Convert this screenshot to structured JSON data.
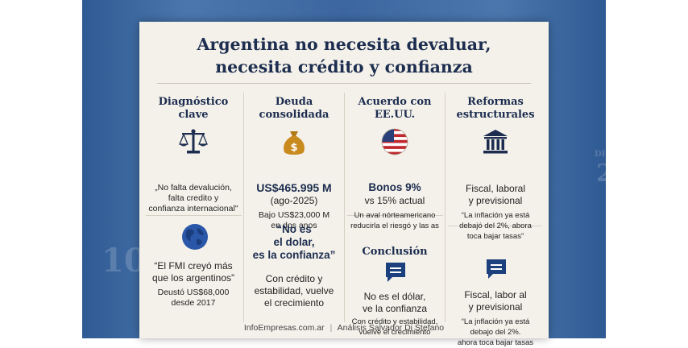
{
  "title": {
    "line1": "Argentina no necesita devaluar,",
    "line2": "necesita crédito y confianza"
  },
  "col1": {
    "header_l1": "Diagnóstico",
    "header_l2": "clave",
    "quote_l1": "„No falta devalución,",
    "quote_l2": "falta credito y",
    "quote_l3": "confianza internacional\"",
    "lower_l1": "“El FMI creyó más",
    "lower_l2": "que los argentinos”",
    "lower_l3": "Deustó US$68,000",
    "lower_l4": "desde 2017"
  },
  "col2": {
    "header_l1": "Deuda",
    "header_l2": "consolidada",
    "amount": "US$465.995 M",
    "date": "(ago-2025)",
    "note_l1": "Bajo US$23,000 M",
    "note_l2": "en dos anos",
    "slogan_l1": "“No es",
    "slogan_l2": "el dolar,",
    "slogan_l3": "es la confianza”",
    "slogan_sub_l1": "Con crédito y",
    "slogan_sub_l2": "estabilidad, vuelve",
    "slogan_sub_l3": "el crecimiento"
  },
  "col3": {
    "header_l1": "Acuerdo con",
    "header_l2": "EE.UU.",
    "bond_l1": "Bonos 9%",
    "bond_l2": "vs 15% actual",
    "note_l1": "Un aval nórteamericano",
    "note_l2": "reducirla el riesgó y las as",
    "conclusion": "Conclusión",
    "concl_l1": "No es el dólar,",
    "concl_l2": "ve la confianza",
    "concl_sub_l1": "Con crédito y estabilidad,",
    "concl_sub_l2": "vueive el crecimiento"
  },
  "col4": {
    "header_l1": "Reformas",
    "header_l2": "estructurales",
    "reform_l1": "Fiscal, laboral",
    "reform_l2": "y previsional",
    "quote_l1": "“La inflación ya está",
    "quote_l2": "debajó del 2%, abora",
    "quote_l3": "toca bajar tasas”",
    "lower_l1": "Fiscal, labor al",
    "lower_l2": "y previsional",
    "lower_q1": "“La jnflación ya está",
    "lower_q2": "debajo del 2%.",
    "lower_q3": "ahora toca bajar tasas"
  },
  "footer": {
    "site": "InfoEmpresas.com.ar",
    "separator": "|",
    "author": "Análisis Salvador Di Stefano"
  },
  "background_text": {
    "left": "10",
    "right_1": "2",
    "right_2": "DIP"
  },
  "icons": [
    "scales-icon",
    "money-bag-icon",
    "us-flag-icon",
    "government-building-icon",
    "globe-icon",
    "chat-bubble-icon"
  ],
  "colors": {
    "navy": "#1c2d4f",
    "card": "#f4f1ea",
    "background": "#3c669f",
    "gold": "#c98a1e"
  }
}
